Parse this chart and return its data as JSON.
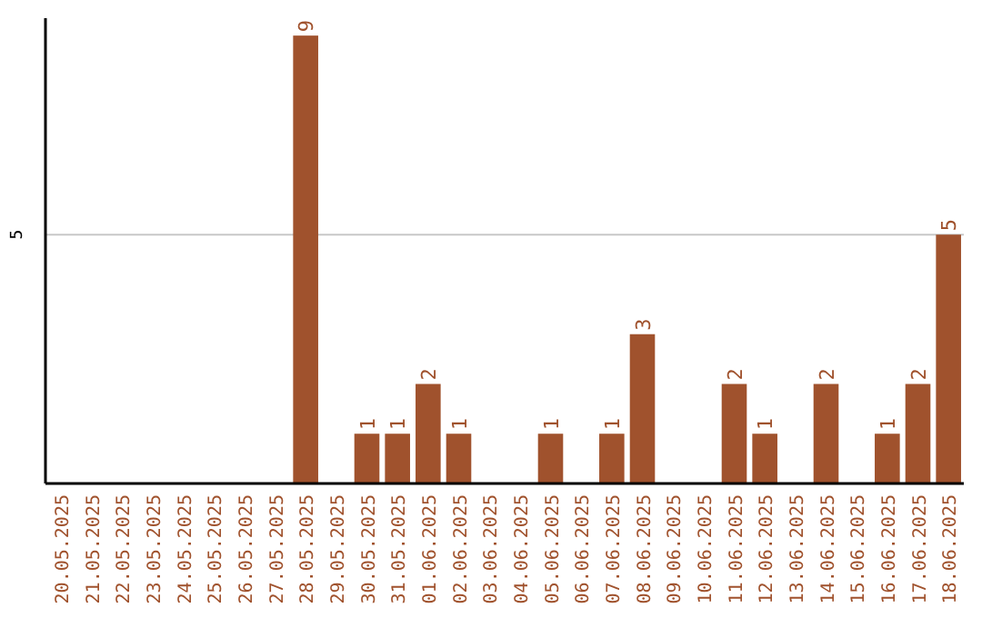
{
  "chart_data": {
    "type": "bar",
    "categories": [
      "20.05.2025",
      "21.05.2025",
      "22.05.2025",
      "23.05.2025",
      "24.05.2025",
      "25.05.2025",
      "26.05.2025",
      "27.05.2025",
      "28.05.2025",
      "29.05.2025",
      "30.05.2025",
      "31.05.2025",
      "01.06.2025",
      "02.06.2025",
      "03.06.2025",
      "04.06.2025",
      "05.06.2025",
      "06.06.2025",
      "07.06.2025",
      "08.06.2025",
      "09.06.2025",
      "10.06.2025",
      "11.06.2025",
      "12.06.2025",
      "13.06.2025",
      "14.06.2025",
      "15.06.2025",
      "16.06.2025",
      "17.06.2025",
      "18.06.2025"
    ],
    "values": [
      0,
      0,
      0,
      0,
      0,
      0,
      0,
      0,
      9,
      0,
      1,
      1,
      2,
      1,
      0,
      0,
      1,
      0,
      1,
      3,
      0,
      0,
      2,
      1,
      0,
      2,
      0,
      1,
      2,
      5
    ],
    "value_labels": [
      null,
      null,
      null,
      null,
      null,
      null,
      null,
      null,
      "9",
      null,
      "1",
      "1",
      "2",
      "1",
      null,
      null,
      "1",
      null,
      "1",
      "3",
      null,
      null,
      "2",
      "1",
      null,
      "2",
      null,
      "1",
      "2",
      "5"
    ],
    "color": "#a0522d",
    "ylim": [
      0,
      9.35
    ],
    "yticks": [
      5
    ],
    "grid": "y"
  }
}
